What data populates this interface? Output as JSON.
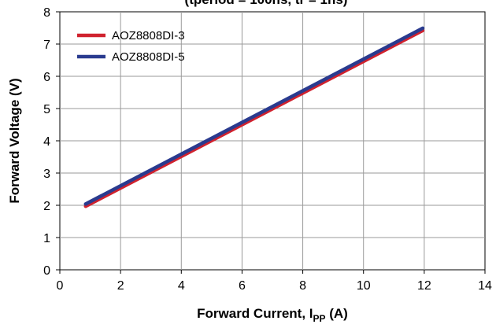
{
  "chart_data": {
    "type": "line",
    "title": "(tperiod = 100ns, tr = 1ns)",
    "xlabel": "Forward Current, IPP (A)",
    "xlabel_main": "Forward Current, I",
    "xlabel_sub": "PP",
    "xlabel_unit": " (A)",
    "ylabel": "Forward Voltage (V)",
    "xlim": [
      0,
      14
    ],
    "ylim": [
      0,
      8
    ],
    "xticks": [
      0,
      2,
      4,
      6,
      8,
      10,
      12,
      14
    ],
    "yticks": [
      0,
      1,
      2,
      3,
      4,
      5,
      6,
      7,
      8
    ],
    "grid": true,
    "legend_position": "top-left",
    "series": [
      {
        "name": "AOZ8808DI-3",
        "color": "#d0222e",
        "x": [
          0.85,
          11.95
        ],
        "y": [
          1.97,
          7.42
        ]
      },
      {
        "name": "AOZ8808DI-5",
        "color": "#2a3b8f",
        "x": [
          0.85,
          11.95
        ],
        "y": [
          2.04,
          7.49
        ]
      }
    ]
  }
}
